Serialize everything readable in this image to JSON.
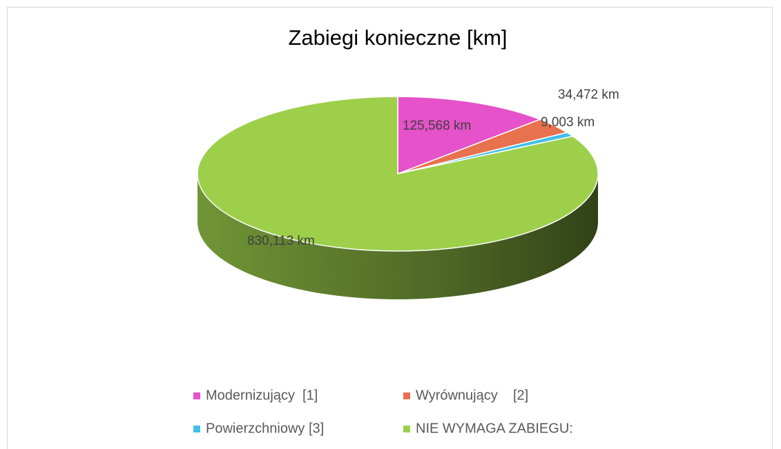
{
  "chart_data": {
    "type": "pie3d",
    "title": "Zabiegi konieczne [km]",
    "categories": [
      "Modernizujący  [1]",
      "Wyrównujący    [2]",
      "Powierzchniowy [3]",
      "NIE WYMAGA ZABIEGU:"
    ],
    "values": [
      125.568,
      34.472,
      9.003,
      830.113
    ],
    "value_labels": [
      "125,568 km",
      "34,472 km",
      "9,003 km",
      "830,113 km"
    ],
    "colors": [
      "#e552c9",
      "#e8714e",
      "#41bfe8",
      "#9dcf4b"
    ],
    "legend": "bottom"
  }
}
